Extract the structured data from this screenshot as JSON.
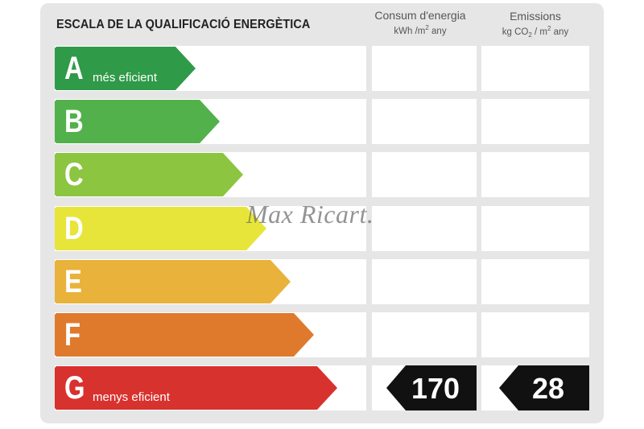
{
  "title": "ESCALA DE LA QUALIFICACIÓ ENERGÈTICA",
  "columns": {
    "consum": {
      "label": "Consum d'energia",
      "unit_pre": "kWh /m",
      "unit_sup": "2",
      "unit_post": " any"
    },
    "emissions": {
      "label": "Emissions",
      "unit_pre": "kg CO",
      "unit_sub": "2",
      "unit_mid": " / m",
      "unit_sup": "2",
      "unit_post": "  any"
    }
  },
  "ratings": [
    {
      "letter": "A",
      "sublabel": "més eficient",
      "color": "#2f9a48"
    },
    {
      "letter": "B",
      "sublabel": "",
      "color": "#52b14a"
    },
    {
      "letter": "C",
      "sublabel": "",
      "color": "#8cc540"
    },
    {
      "letter": "D",
      "sublabel": "",
      "color": "#e7e53a"
    },
    {
      "letter": "E",
      "sublabel": "",
      "color": "#e9b23a"
    },
    {
      "letter": "F",
      "sublabel": "",
      "color": "#df7a2d"
    },
    {
      "letter": "G",
      "sublabel": "menys eficient",
      "color": "#d8322e"
    }
  ],
  "current": {
    "rating": "G",
    "consum": "170",
    "emissions": "28"
  },
  "watermark": "Max Ricart.",
  "badge_color": "#111111"
}
